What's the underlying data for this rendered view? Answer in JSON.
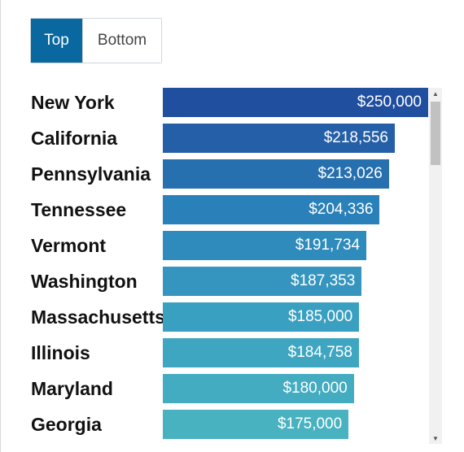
{
  "toggle": {
    "top_label": "Top",
    "bottom_label": "Bottom",
    "selected": "Top"
  },
  "colors": {
    "toggle_active": "#08689f",
    "bar_gradient": [
      "#214f9f",
      "#2a80b9",
      "#3aa0c1",
      "#48b2c0"
    ]
  },
  "scrollbar": {
    "up_icon": "arrow-up-icon",
    "down_icon": "arrow-down-icon"
  },
  "chart_data": {
    "type": "bar",
    "orientation": "horizontal",
    "title": "",
    "xlabel": "",
    "ylabel": "",
    "categories": [
      "New York",
      "California",
      "Pennsylvania",
      "Tennessee",
      "Vermont",
      "Washington",
      "Massachusetts",
      "Illinois",
      "Maryland",
      "Georgia"
    ],
    "values": [
      250000,
      218556,
      213026,
      204336,
      191734,
      187353,
      185000,
      184758,
      180000,
      175000
    ],
    "value_labels": [
      "$250,000",
      "$218,556",
      "$213,026",
      "$204,336",
      "$191,734",
      "$187,353",
      "$185,000",
      "$184,758",
      "$180,000",
      "$175,000"
    ],
    "xlim": [
      0,
      250000
    ],
    "grid": false,
    "legend": "none"
  }
}
